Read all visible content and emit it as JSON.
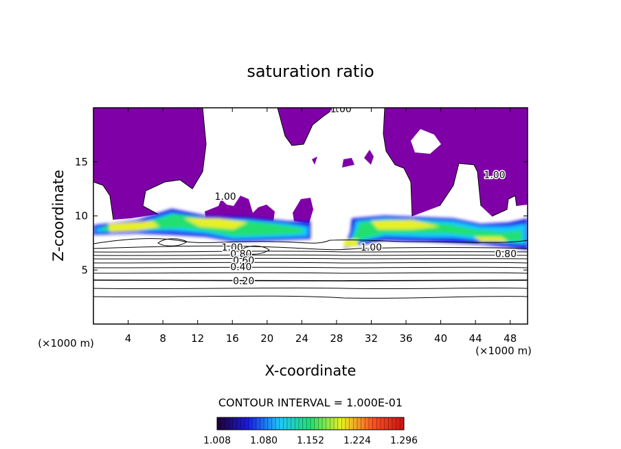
{
  "chart_data": {
    "type": "heatmap",
    "title": "saturation ratio",
    "xlabel": "X-coordinate",
    "ylabel": "Z-coordinate",
    "x_unit": "(×1000 m)",
    "z_unit": "(×1000 m)",
    "x_ticks": [
      4,
      8,
      12,
      16,
      20,
      24,
      28,
      32,
      36,
      40,
      44,
      48
    ],
    "y_ticks": [
      5,
      10,
      15
    ],
    "xlim": [
      0,
      50
    ],
    "ylim": [
      0,
      20
    ],
    "contour_interval_text": "CONTOUR INTERVAL = 1.000E-01",
    "contour_levels": [
      0.1,
      0.2,
      0.3,
      0.4,
      0.5,
      0.6,
      0.7,
      0.8,
      0.9,
      1.0
    ],
    "contour_labels": [
      {
        "text": "1.00",
        "x": 28.5,
        "z": 19.9
      },
      {
        "text": "1.00",
        "x": 46.2,
        "z": 13.8
      },
      {
        "text": "1.00",
        "x": 15.2,
        "z": 11.8
      },
      {
        "text": "1.00",
        "x": 16.0,
        "z": 7.1
      },
      {
        "text": "1.00",
        "x": 32.0,
        "z": 7.1
      },
      {
        "text": "0.80",
        "x": 17.0,
        "z": 6.5
      },
      {
        "text": "0.80",
        "x": 47.5,
        "z": 6.5
      },
      {
        "text": "0.60",
        "x": 17.3,
        "z": 5.9
      },
      {
        "text": "0.40",
        "x": 17.0,
        "z": 5.3
      },
      {
        "text": "0.20",
        "x": 17.3,
        "z": 4.0
      }
    ],
    "colorbar": {
      "min": 1.008,
      "max": 1.296,
      "tick_labels": [
        "1.008",
        "1.080",
        "1.152",
        "1.224",
        "1.296"
      ],
      "colors": [
        "#200030",
        "#1a1ae8",
        "#19c8ff",
        "#20e070",
        "#e8f020",
        "#ff5020",
        "#d01010"
      ]
    },
    "fill_color": "#8000a8",
    "grid": false
  }
}
